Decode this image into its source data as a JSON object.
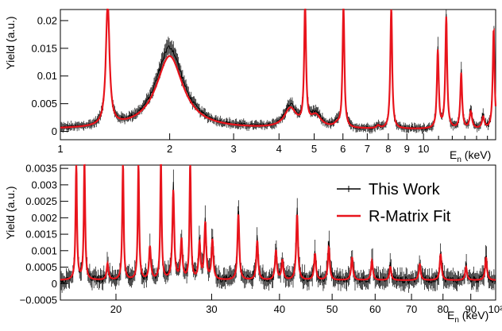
{
  "chart_data": [
    {
      "type": "line",
      "scale_x": "log",
      "xlim": [
        1,
        15.8
      ],
      "ylim": [
        -0.0015,
        0.022
      ],
      "xlabel_main": "E",
      "xlabel_sub": "n",
      "xlabel_unit": " (keV)",
      "ylabel": "Yield (a.u.)",
      "x_ticks": [
        "1",
        "2",
        "3",
        "4",
        "5",
        "6",
        "7",
        "8",
        "9",
        "10"
      ],
      "y_ticks": [
        "0",
        "0.005",
        "0.01",
        "0.015",
        "0.02"
      ],
      "background": 0.00035,
      "series": [
        {
          "color": "#000000",
          "peaks": [
            {
              "x": 1.35,
              "height": 0.022,
              "width": 0.006
            },
            {
              "x": 2.0,
              "height": 0.0148,
              "width": 0.045
            },
            {
              "x": 4.3,
              "height": 0.004,
              "width": 0.02
            },
            {
              "x": 5.05,
              "height": 0.0025,
              "width": 0.018
            },
            {
              "x": 5.78,
              "height": 0.0008,
              "width": 0.01
            },
            {
              "x": 7.5,
              "height": 0.0006,
              "width": 0.005
            },
            {
              "x": 8.15,
              "height": 0.022,
              "width": 0.003
            },
            {
              "x": 6.02,
              "height": 0.022,
              "width": 0.003
            },
            {
              "x": 4.72,
              "height": 0.022,
              "width": 0.003
            },
            {
              "x": 10.95,
              "height": 0.0145,
              "width": 0.003
            },
            {
              "x": 11.55,
              "height": 0.0205,
              "width": 0.003
            },
            {
              "x": 12.7,
              "height": 0.0105,
              "width": 0.003
            },
            {
              "x": 13.5,
              "height": 0.0035,
              "width": 0.004
            },
            {
              "x": 14.6,
              "height": 0.0025,
              "width": 0.004
            },
            {
              "x": 15.6,
              "height": 0.0185,
              "width": 0.003
            }
          ]
        },
        {
          "color": "#e8141c",
          "peaks": [
            {
              "x": 1.35,
              "height": 0.022,
              "width": 0.006
            },
            {
              "x": 2.0,
              "height": 0.0132,
              "width": 0.045
            },
            {
              "x": 4.3,
              "height": 0.0035,
              "width": 0.02
            },
            {
              "x": 5.05,
              "height": 0.0022,
              "width": 0.018
            },
            {
              "x": 5.78,
              "height": 0.0006,
              "width": 0.01
            },
            {
              "x": 7.5,
              "height": 0.0005,
              "width": 0.005
            },
            {
              "x": 8.15,
              "height": 0.022,
              "width": 0.003
            },
            {
              "x": 6.02,
              "height": 0.022,
              "width": 0.003
            },
            {
              "x": 4.72,
              "height": 0.022,
              "width": 0.003
            },
            {
              "x": 10.95,
              "height": 0.014,
              "width": 0.003
            },
            {
              "x": 11.55,
              "height": 0.02,
              "width": 0.003
            },
            {
              "x": 12.7,
              "height": 0.01,
              "width": 0.003
            },
            {
              "x": 13.5,
              "height": 0.003,
              "width": 0.004
            },
            {
              "x": 14.6,
              "height": 0.002,
              "width": 0.004
            },
            {
              "x": 15.6,
              "height": 0.018,
              "width": 0.003
            }
          ]
        }
      ]
    },
    {
      "type": "line",
      "scale_x": "log",
      "xlim": [
        15.8,
        100
      ],
      "ylim": [
        -0.0005,
        0.0036
      ],
      "xlabel_main": "E",
      "xlabel_sub": "n",
      "xlabel_unit": " (keV)",
      "ylabel": "Yield (a.u.)",
      "x_ticks": [
        "20",
        "30",
        "40",
        "50",
        "60",
        "70",
        "80",
        "90",
        "10²"
      ],
      "y_ticks": [
        "−0.0005",
        "0",
        "0.0005",
        "0.001",
        "0.0015",
        "0.002",
        "0.0025",
        "0.003",
        "0.0035"
      ],
      "legend": {
        "position": "top-right",
        "entries": [
          {
            "name": "This Work",
            "color": "#000000"
          },
          {
            "name": "R-Matrix Fit",
            "color": "#e8141c"
          }
        ]
      },
      "background": 0.0001,
      "series": [
        {
          "name": "This Work",
          "color": "#000000",
          "peaks": [
            {
              "x": 16.9,
              "height": 0.0036,
              "width": 0.0015
            },
            {
              "x": 17.5,
              "height": 0.0036,
              "width": 0.0015
            },
            {
              "x": 19.3,
              "height": 0.0006,
              "width": 0.002
            },
            {
              "x": 20.6,
              "height": 0.0036,
              "width": 0.0015
            },
            {
              "x": 22.0,
              "height": 0.0036,
              "width": 0.0015
            },
            {
              "x": 23.1,
              "height": 0.0011,
              "width": 0.002
            },
            {
              "x": 24.2,
              "height": 0.0036,
              "width": 0.0015
            },
            {
              "x": 25.5,
              "height": 0.0029,
              "width": 0.002
            },
            {
              "x": 26.4,
              "height": 0.0013,
              "width": 0.002
            },
            {
              "x": 27.4,
              "height": 0.0036,
              "width": 0.0015
            },
            {
              "x": 28.5,
              "height": 0.0012,
              "width": 0.002
            },
            {
              "x": 29.2,
              "height": 0.0019,
              "width": 0.002
            },
            {
              "x": 30.1,
              "height": 0.0014,
              "width": 0.002
            },
            {
              "x": 33.6,
              "height": 0.0022,
              "width": 0.002
            },
            {
              "x": 36.4,
              "height": 0.0014,
              "width": 0.002
            },
            {
              "x": 39.4,
              "height": 0.001,
              "width": 0.002
            },
            {
              "x": 40.5,
              "height": 0.0007,
              "width": 0.002
            },
            {
              "x": 43.1,
              "height": 0.0022,
              "width": 0.002
            },
            {
              "x": 46.5,
              "height": 0.0009,
              "width": 0.002
            },
            {
              "x": 49.3,
              "height": 0.0012,
              "width": 0.002
            },
            {
              "x": 54.4,
              "height": 0.0008,
              "width": 0.002
            },
            {
              "x": 59.2,
              "height": 0.0007,
              "width": 0.002
            },
            {
              "x": 64.0,
              "height": 0.0005,
              "width": 0.002
            },
            {
              "x": 72.5,
              "height": 0.0006,
              "width": 0.002
            },
            {
              "x": 79.2,
              "height": 0.0009,
              "width": 0.002
            },
            {
              "x": 88.2,
              "height": 0.0005,
              "width": 0.002
            },
            {
              "x": 96.0,
              "height": 0.0008,
              "width": 0.002
            }
          ]
        },
        {
          "name": "R-Matrix Fit",
          "color": "#e8141c",
          "peaks": [
            {
              "x": 16.9,
              "height": 0.0036,
              "width": 0.0015
            },
            {
              "x": 17.5,
              "height": 0.0036,
              "width": 0.0015
            },
            {
              "x": 19.3,
              "height": 0.0005,
              "width": 0.002
            },
            {
              "x": 20.6,
              "height": 0.0036,
              "width": 0.0015
            },
            {
              "x": 22.0,
              "height": 0.0036,
              "width": 0.0015
            },
            {
              "x": 23.1,
              "height": 0.001,
              "width": 0.002
            },
            {
              "x": 24.2,
              "height": 0.0036,
              "width": 0.0015
            },
            {
              "x": 25.5,
              "height": 0.0027,
              "width": 0.002
            },
            {
              "x": 26.4,
              "height": 0.0012,
              "width": 0.002
            },
            {
              "x": 27.4,
              "height": 0.0036,
              "width": 0.0015
            },
            {
              "x": 28.5,
              "height": 0.0011,
              "width": 0.002
            },
            {
              "x": 29.2,
              "height": 0.0017,
              "width": 0.002
            },
            {
              "x": 30.1,
              "height": 0.0012,
              "width": 0.002
            },
            {
              "x": 33.6,
              "height": 0.002,
              "width": 0.002
            },
            {
              "x": 36.4,
              "height": 0.0012,
              "width": 0.002
            },
            {
              "x": 39.4,
              "height": 0.0009,
              "width": 0.002
            },
            {
              "x": 40.5,
              "height": 0.0006,
              "width": 0.002
            },
            {
              "x": 43.1,
              "height": 0.002,
              "width": 0.002
            },
            {
              "x": 46.5,
              "height": 0.0008,
              "width": 0.002
            },
            {
              "x": 49.3,
              "height": 0.001,
              "width": 0.002
            },
            {
              "x": 54.4,
              "height": 0.0007,
              "width": 0.002
            },
            {
              "x": 59.2,
              "height": 0.0006,
              "width": 0.002
            },
            {
              "x": 64.0,
              "height": 0.0004,
              "width": 0.002
            },
            {
              "x": 72.5,
              "height": 0.0005,
              "width": 0.002
            },
            {
              "x": 79.2,
              "height": 0.0008,
              "width": 0.002
            },
            {
              "x": 88.2,
              "height": 0.0004,
              "width": 0.002
            },
            {
              "x": 96.0,
              "height": 0.0007,
              "width": 0.002
            }
          ]
        }
      ]
    }
  ]
}
